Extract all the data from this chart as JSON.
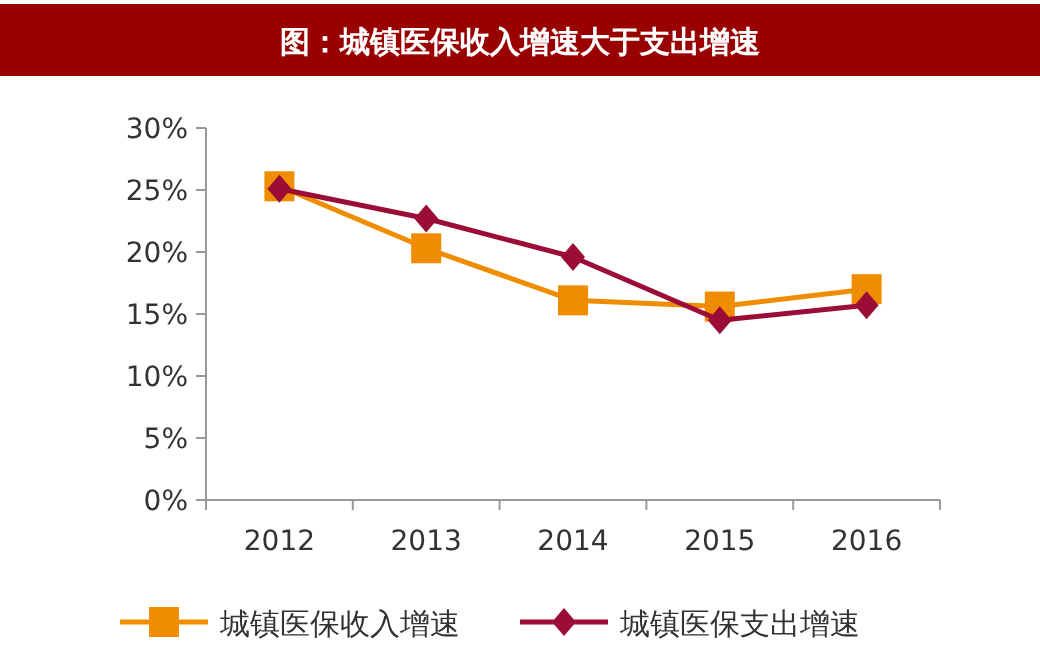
{
  "chart_data": {
    "type": "line",
    "title": "图：城镇医保收入增速大于支出增速",
    "categories": [
      "2012",
      "2013",
      "2014",
      "2015",
      "2016"
    ],
    "series": [
      {
        "name": "城镇医保收入增速",
        "color": "#f08c00",
        "marker": "square",
        "values": [
          25.3,
          20.3,
          16.1,
          15.6,
          17.0
        ]
      },
      {
        "name": "城镇医保支出增速",
        "color": "#9b0d36",
        "marker": "diamond",
        "values": [
          25.1,
          22.7,
          19.6,
          14.5,
          15.7
        ]
      }
    ],
    "ylim": [
      0,
      30
    ],
    "yticks": [
      {
        "value": 0,
        "label": "0%"
      },
      {
        "value": 5,
        "label": "5%"
      },
      {
        "value": 10,
        "label": "10%"
      },
      {
        "value": 15,
        "label": "15%"
      },
      {
        "value": 20,
        "label": "20%"
      },
      {
        "value": 25,
        "label": "25%"
      },
      {
        "value": 30,
        "label": "30%"
      }
    ],
    "grid": false,
    "legend": "bottom"
  }
}
